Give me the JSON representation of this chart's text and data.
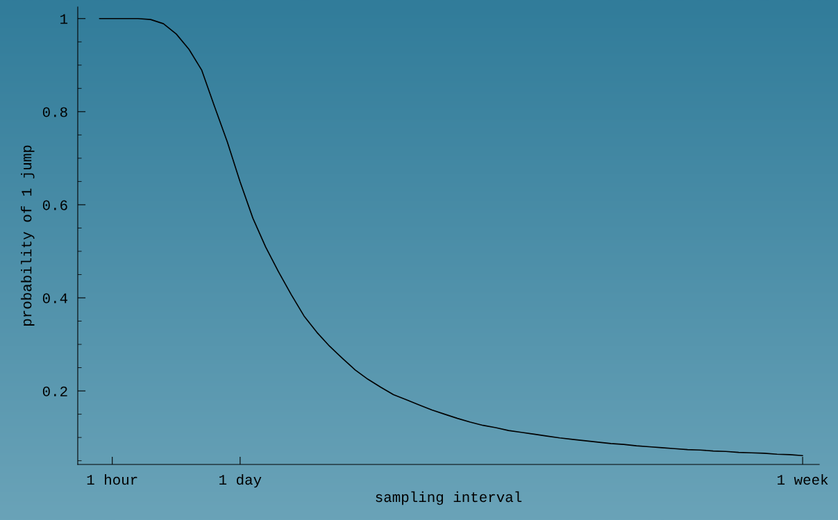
{
  "chart_data": {
    "type": "line",
    "xlabel": "sampling interval",
    "ylabel": "probability of 1 jump",
    "categories": [
      null,
      "1 hour",
      null,
      null,
      null,
      null,
      null,
      null,
      null,
      null,
      null,
      "1 day",
      null,
      null,
      null,
      null,
      null,
      null,
      null,
      null,
      null,
      null,
      null,
      null,
      null,
      null,
      null,
      null,
      null,
      null,
      null,
      null,
      null,
      null,
      null,
      null,
      null,
      null,
      null,
      null,
      null,
      null,
      null,
      null,
      null,
      null,
      null,
      null,
      null,
      null,
      null,
      null,
      null,
      null,
      null,
      "1 week"
    ],
    "series": [
      {
        "color": "#000000",
        "values": [
          1.0,
          1.0,
          1.0,
          1.0,
          0.998,
          0.989,
          0.967,
          0.934,
          0.889,
          0.811,
          0.735,
          0.649,
          0.571,
          0.509,
          0.456,
          0.407,
          0.361,
          0.326,
          0.296,
          0.27,
          0.245,
          0.225,
          0.208,
          0.192,
          0.181,
          0.17,
          0.159,
          0.15,
          0.141,
          0.133,
          0.126,
          0.121,
          0.115,
          0.111,
          0.107,
          0.103,
          0.099,
          0.096,
          0.093,
          0.09,
          0.087,
          0.085,
          0.082,
          0.08,
          0.078,
          0.076,
          0.074,
          0.073,
          0.071,
          0.07,
          0.068,
          0.067,
          0.066,
          0.064,
          0.063,
          0.061
        ]
      }
    ],
    "ylim": [
      0.042,
      1.025
    ],
    "yticks": [
      {
        "value": 0.2,
        "label": "0.2"
      },
      {
        "value": 0.4,
        "label": "0.4"
      },
      {
        "value": 0.6,
        "label": "0.6"
      },
      {
        "value": 0.8,
        "label": "0.8"
      },
      1
    ],
    "grid": false,
    "legend": false,
    "marker": "none",
    "line_style": "solid"
  }
}
